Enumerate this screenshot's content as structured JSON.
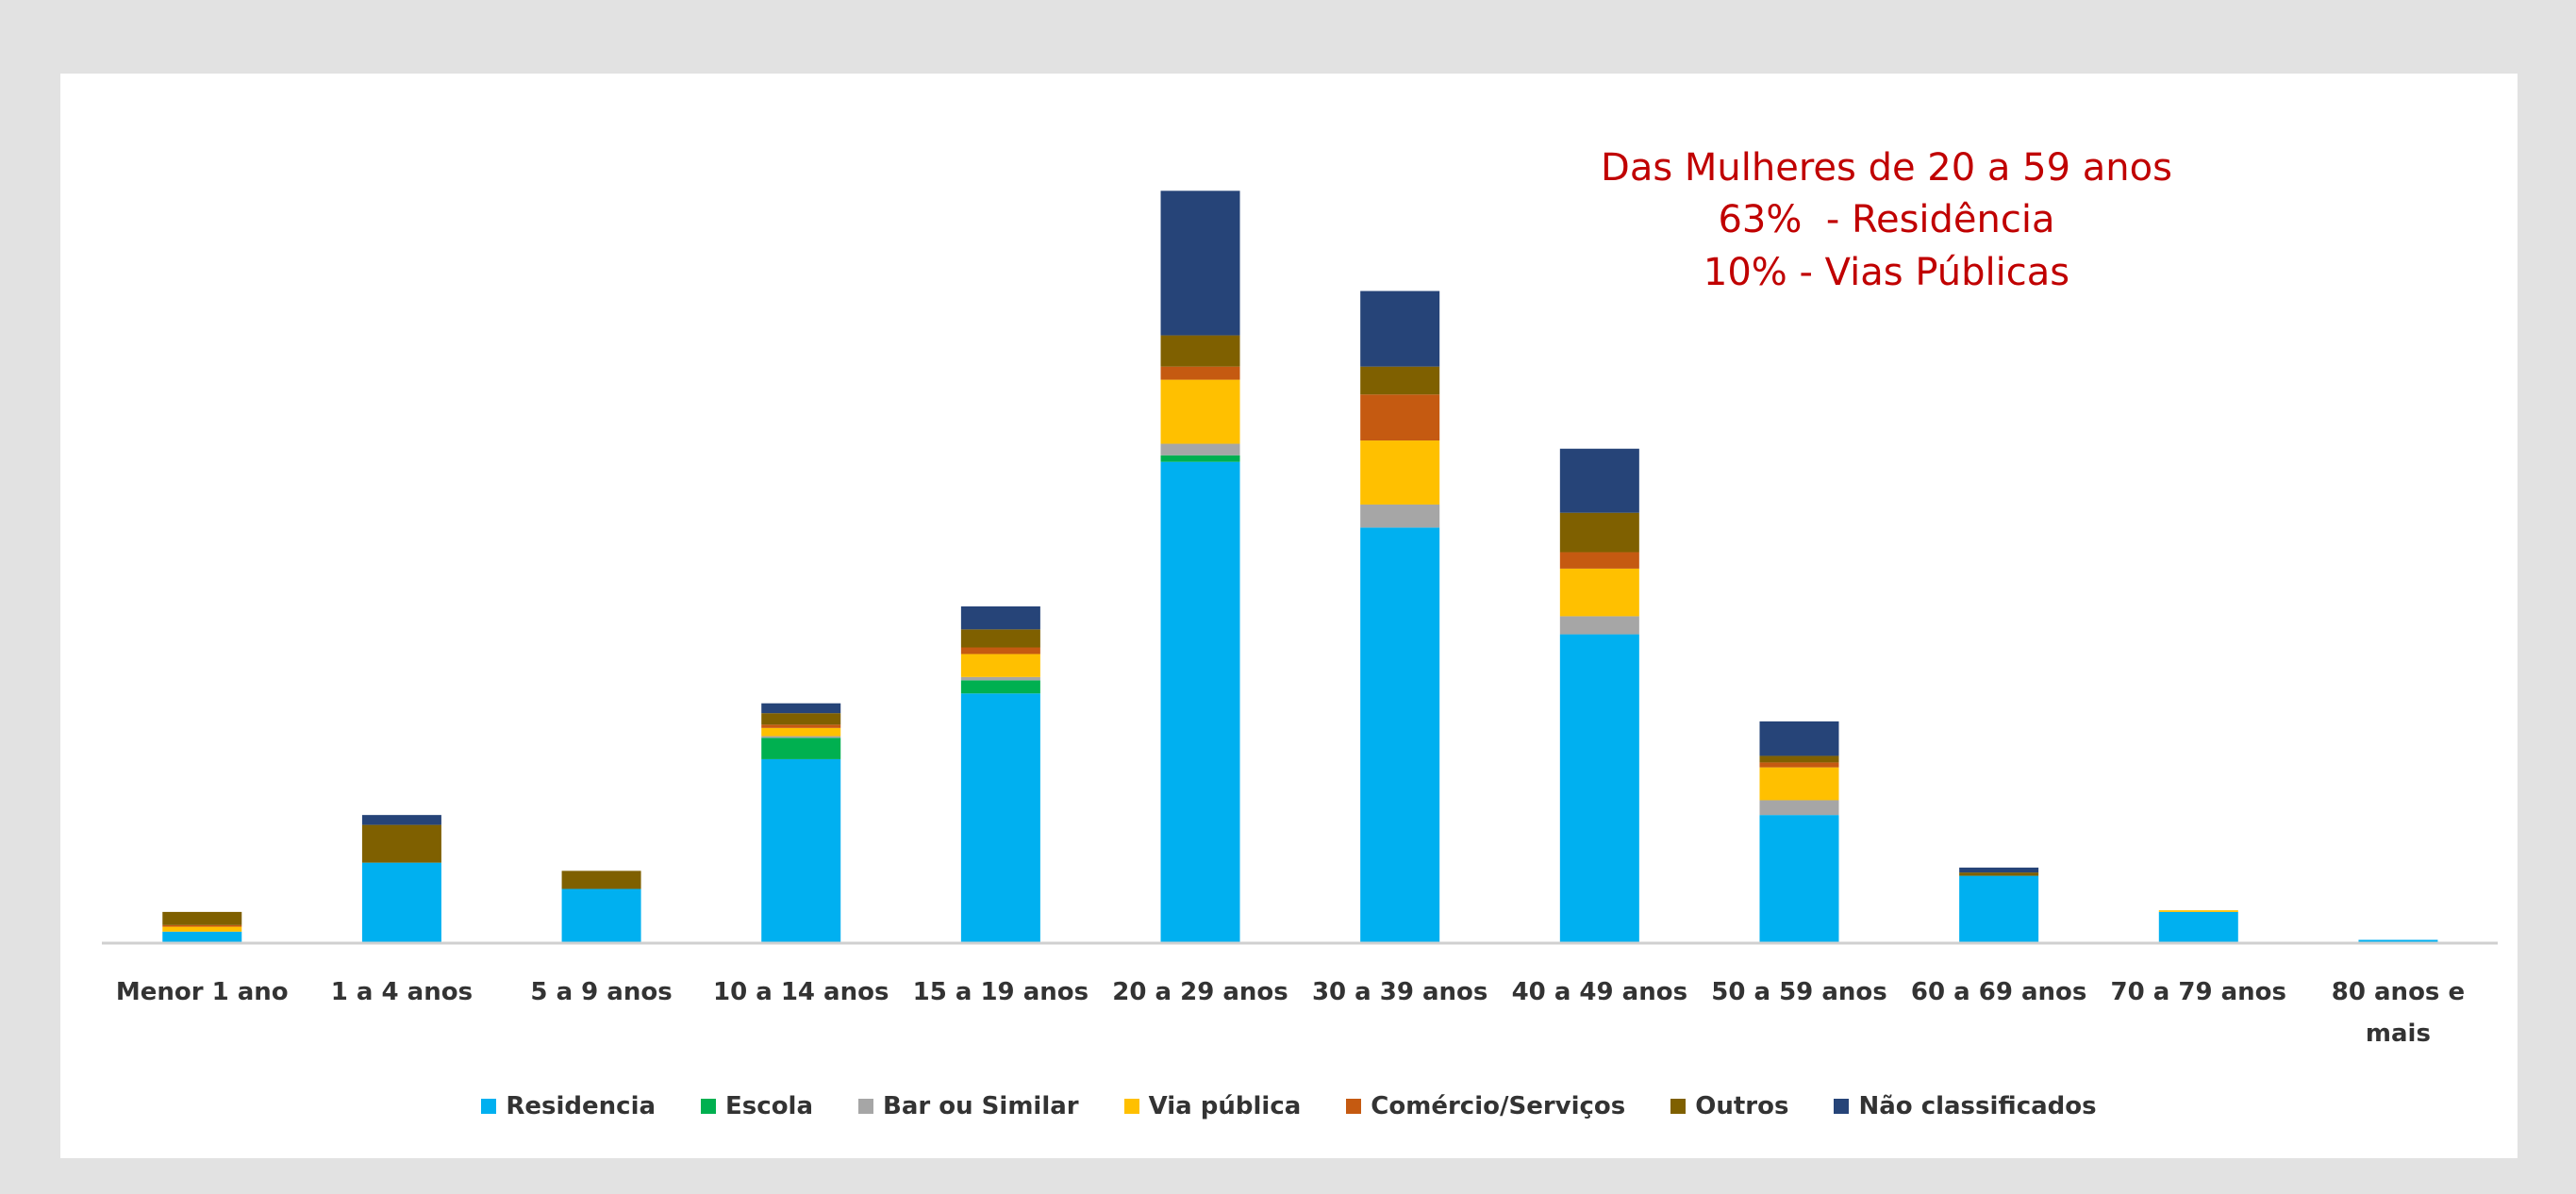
{
  "chart_data": {
    "type": "stacked-bar",
    "annotation": [
      "Das Mulheres de 20 a 59 anos",
      "63%  - Residência",
      "10% - Vias Públicas"
    ],
    "categories": [
      "Menor 1 ano",
      "1 a 4 anos",
      "5 a 9 anos",
      "10 a 14 anos",
      "15 a 19 anos",
      "20 a 29 anos",
      "30 a 39 anos",
      "40 a 49 anos",
      "50 a 59 anos",
      "60 a 69 anos",
      "70 a 79 anos",
      "80 anos e mais"
    ],
    "series": [
      {
        "name": "Residencia",
        "color": "#00b0f0",
        "values": [
          7,
          49,
          33,
          112,
          152,
          293,
          253,
          188,
          78,
          41,
          19,
          2
        ]
      },
      {
        "name": "Escola",
        "color": "#00b050",
        "values": [
          0,
          0,
          0,
          13,
          8,
          4,
          0,
          0,
          0,
          0,
          0,
          0
        ]
      },
      {
        "name": "Bar ou Similar",
        "color": "#a6a6a6",
        "values": [
          0,
          0,
          0,
          1,
          2,
          7,
          14,
          11,
          9,
          0,
          0,
          0
        ]
      },
      {
        "name": "Via pública",
        "color": "#ffc000",
        "values": [
          3,
          0,
          0,
          5,
          14,
          39,
          39,
          29,
          20,
          0,
          1,
          0
        ]
      },
      {
        "name": "Comércio/Serviços",
        "color": "#c55a11",
        "values": [
          1,
          0,
          0,
          2,
          4,
          8,
          28,
          10,
          3,
          0,
          0,
          0
        ]
      },
      {
        "name": "Outros",
        "color": "#7f6000",
        "values": [
          8,
          23,
          11,
          7,
          11,
          19,
          17,
          24,
          4,
          2,
          0,
          0
        ]
      },
      {
        "name": "Não classificados",
        "color": "#264478",
        "values": [
          0,
          6,
          0,
          6,
          14,
          88,
          46,
          39,
          21,
          3,
          0,
          0
        ]
      }
    ],
    "ylim": [
      0,
      480
    ]
  }
}
